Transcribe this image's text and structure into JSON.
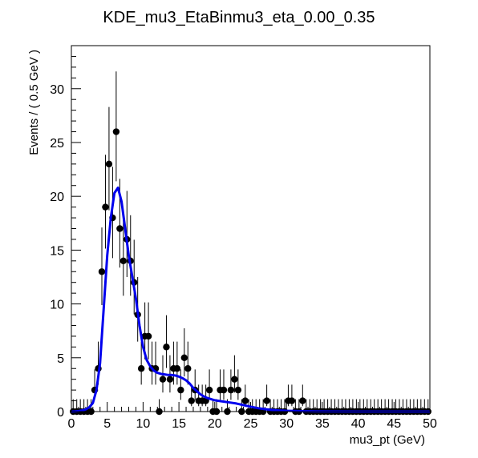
{
  "chart_data": {
    "type": "scatter",
    "title": "KDE_mu3_EtaBinmu3_eta_0.00_0.35",
    "xlabel": "mu3_pt (GeV)",
    "ylabel": "Events / ( 0.5 GeV )",
    "xlim": [
      0,
      50
    ],
    "ylim": [
      0,
      34
    ],
    "x_ticks": [
      0,
      5,
      10,
      15,
      20,
      25,
      30,
      35,
      40,
      45,
      50
    ],
    "y_ticks": [
      0,
      5,
      10,
      15,
      20,
      25,
      30
    ],
    "grid": false,
    "legend": "none",
    "colors": {
      "curve": "#0000ee",
      "points": "#000000"
    },
    "series": [
      {
        "kind": "points_with_errors",
        "x": [
          0.25,
          0.75,
          1.25,
          1.75,
          2.25,
          2.75,
          3.25,
          3.75,
          4.25,
          4.75,
          5.25,
          5.75,
          6.25,
          6.75,
          7.25,
          7.75,
          8.25,
          8.75,
          9.25,
          9.75,
          10.25,
          10.75,
          11.25,
          11.75,
          12.25,
          12.75,
          13.25,
          13.75,
          14.25,
          14.75,
          15.25,
          15.75,
          16.25,
          16.75,
          17.25,
          17.75,
          18.25,
          18.75,
          19.25,
          19.75,
          20.25,
          20.75,
          21.25,
          21.75,
          22.25,
          22.75,
          23.25,
          23.75,
          24.25,
          24.75,
          25.25,
          25.75,
          26.25,
          26.75,
          27.25,
          27.75,
          28.25,
          28.75,
          29.25,
          29.75,
          30.25,
          30.75,
          31.25,
          31.75,
          32.25,
          32.75,
          33.25,
          33.75,
          34.25,
          34.75,
          35.25,
          35.75,
          36.25,
          36.75,
          37.25,
          37.75,
          38.25,
          38.75,
          39.25,
          39.75,
          40.25,
          40.75,
          41.25,
          41.75,
          42.25,
          42.75,
          43.25,
          43.75,
          44.25,
          44.75,
          45.25,
          45.75,
          46.25,
          46.75,
          47.25,
          47.75,
          48.25,
          48.75,
          49.25,
          49.75
        ],
        "y": [
          0,
          0,
          0,
          0,
          0,
          0,
          2,
          4,
          13,
          19,
          23,
          18,
          26,
          17,
          14,
          16,
          14,
          12,
          9,
          4,
          7,
          7,
          4,
          4,
          0,
          3,
          6,
          3,
          4,
          4,
          2,
          5,
          4,
          1,
          2,
          1,
          1,
          1,
          2,
          0,
          0,
          2,
          2,
          0,
          2,
          3,
          2,
          0,
          1,
          0,
          0,
          0,
          0,
          0,
          1,
          0,
          0,
          0,
          0,
          0,
          1,
          1,
          0,
          0,
          1,
          0,
          0,
          0,
          0,
          0,
          0,
          0,
          0,
          0,
          0,
          0,
          0,
          0,
          0,
          0,
          0,
          0,
          0,
          0,
          0,
          0,
          0,
          0,
          0,
          0,
          0,
          0,
          0,
          0,
          0,
          0,
          0,
          0,
          0,
          0
        ]
      },
      {
        "kind": "smooth_curve",
        "x": [
          0,
          0.5,
          1,
          1.5,
          2,
          2.5,
          3,
          3.5,
          4,
          4.5,
          5,
          5.5,
          6,
          6.5,
          7,
          7.5,
          8,
          8.5,
          9,
          9.5,
          10,
          10.5,
          11,
          11.5,
          12,
          12.5,
          13,
          13.5,
          14,
          14.5,
          15,
          15.5,
          16,
          16.5,
          17,
          17.5,
          18,
          18.5,
          19,
          19.5,
          20,
          21,
          22,
          23,
          24,
          25,
          26,
          27,
          28,
          29,
          30,
          32,
          34,
          36,
          40,
          45,
          50
        ],
        "y": [
          0,
          0.02,
          0.05,
          0.1,
          0.2,
          0.4,
          0.8,
          2.0,
          4.5,
          9.5,
          14.5,
          18.0,
          20.3,
          20.8,
          19.5,
          17.0,
          14.5,
          12.5,
          10.5,
          8.0,
          6.0,
          4.8,
          4.2,
          3.8,
          3.6,
          3.5,
          3.45,
          3.4,
          3.4,
          3.35,
          3.25,
          3.1,
          2.9,
          2.6,
          2.2,
          1.9,
          1.6,
          1.4,
          1.25,
          1.15,
          1.05,
          0.95,
          0.85,
          0.75,
          0.6,
          0.45,
          0.32,
          0.22,
          0.15,
          0.1,
          0.07,
          0.04,
          0.02,
          0.01,
          0.003,
          0.001,
          0
        ]
      }
    ]
  }
}
